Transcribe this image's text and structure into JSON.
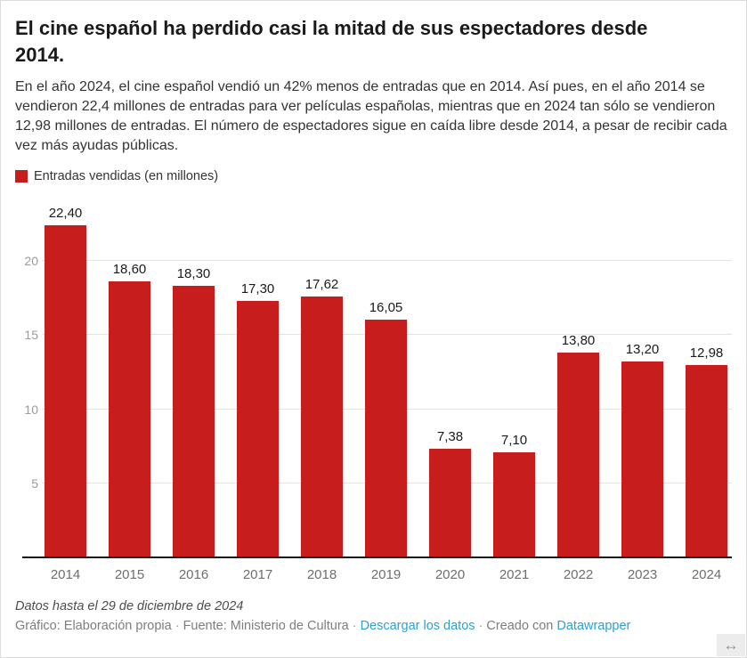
{
  "header": {
    "title": "El cine español ha perdido casi la mitad de sus espectadores desde 2014.",
    "description": "En el año 2024, el cine español vendió un 42% menos de entradas que en 2014. Así pues, en el año 2014 se vendieron 22,4 millones de entradas para ver películas españolas, mientras que en 2024 tan sólo se vendieron 12,98 millones de entradas. El número de espectadores sigue en caída libre desde 2014, a pesar de recibir cada vez más ayudas públicas."
  },
  "legend": {
    "label": "Entradas vendidas (en millones)",
    "color": "#c71e1d"
  },
  "chart_data": {
    "type": "bar",
    "title": "El cine español ha perdido casi la mitad de sus espectadores desde 2014.",
    "series_name": "Entradas vendidas (en millones)",
    "categories": [
      "2014",
      "2015",
      "2016",
      "2017",
      "2018",
      "2019",
      "2020",
      "2021",
      "2022",
      "2023",
      "2024"
    ],
    "values": [
      22.4,
      18.6,
      18.3,
      17.3,
      17.62,
      16.05,
      7.38,
      7.1,
      13.8,
      13.2,
      12.98
    ],
    "value_labels": [
      "22,40",
      "18,60",
      "18,30",
      "17,30",
      "17,62",
      "16,05",
      "7,38",
      "7,10",
      "13,80",
      "13,20",
      "12,98"
    ],
    "xlabel": "",
    "ylabel": "",
    "ylim": [
      0,
      23.7
    ],
    "yticks": [
      5,
      10,
      15,
      20
    ],
    "grid": true,
    "bar_color": "#c71e1d",
    "legend_position": "top-left"
  },
  "footer": {
    "note": "Datos hasta el 29 de diciembre de 2024",
    "byline": "Gráfico: Elaboración propia",
    "source": "Fuente: Ministerio de Cultura",
    "download_link": "Descargar los datos",
    "created_with": "Creado con",
    "tool_link": "Datawrapper",
    "separator": "·"
  },
  "icons": {
    "resize_handle": "↔"
  }
}
